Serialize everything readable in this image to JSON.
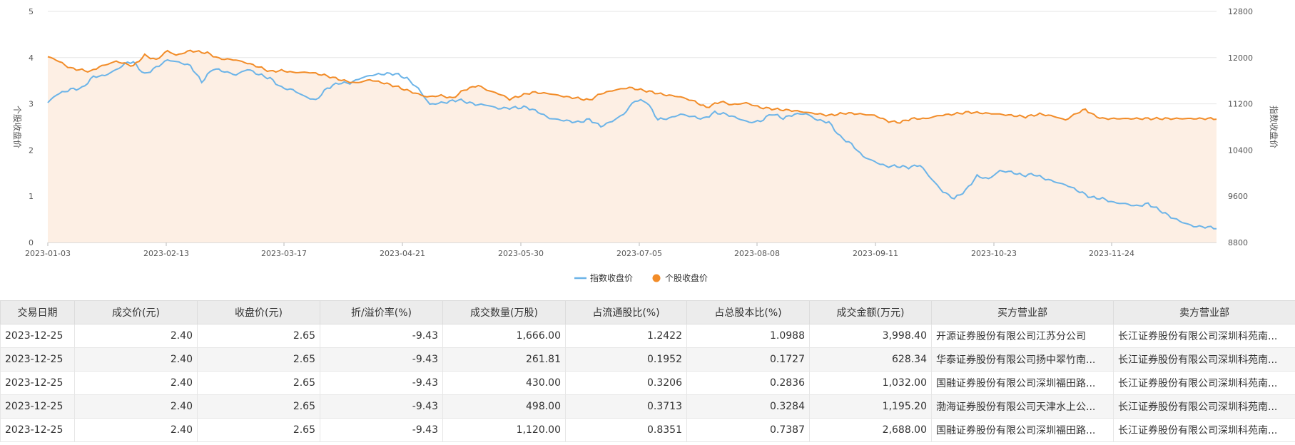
{
  "chart_data": {
    "type": "line",
    "x_ticks": [
      "2023-01-03",
      "2023-02-13",
      "2023-03-17",
      "2023-04-21",
      "2023-05-30",
      "2023-07-05",
      "2023-08-08",
      "2023-09-11",
      "2023-10-23",
      "2023-11-24"
    ],
    "left_axis": {
      "label": "个股收盘价",
      "ticks": [
        "0",
        "1",
        "2",
        "3",
        "4",
        "5"
      ],
      "range": [
        0,
        5
      ]
    },
    "right_axis": {
      "label": "指数收盘价",
      "ticks": [
        "8800",
        "9600",
        "10400",
        "11200",
        "12000",
        "12800"
      ],
      "range": [
        8800,
        12800
      ]
    },
    "legend": [
      "指数收盘价",
      "个股收盘价"
    ],
    "series": [
      {
        "name": "个股收盘价",
        "axis": "left",
        "color": "#f28c28",
        "area_fill": "#fdefe4",
        "keyframes": [
          [
            0,
            4.02
          ],
          [
            3,
            3.95
          ],
          [
            8,
            3.77
          ],
          [
            15,
            3.7
          ],
          [
            18,
            3.8
          ],
          [
            24,
            3.92
          ],
          [
            30,
            3.82
          ],
          [
            34,
            4.05
          ],
          [
            38,
            3.95
          ],
          [
            42,
            4.15
          ],
          [
            45,
            4.05
          ],
          [
            50,
            4.15
          ],
          [
            56,
            4.1
          ],
          [
            60,
            3.98
          ],
          [
            66,
            3.95
          ],
          [
            70,
            3.88
          ],
          [
            74,
            3.8
          ],
          [
            78,
            3.7
          ],
          [
            82,
            3.72
          ],
          [
            86,
            3.68
          ],
          [
            92,
            3.68
          ],
          [
            97,
            3.62
          ],
          [
            104,
            3.5
          ],
          [
            108,
            3.45
          ],
          [
            113,
            3.52
          ],
          [
            118,
            3.45
          ],
          [
            122,
            3.38
          ],
          [
            128,
            3.25
          ],
          [
            133,
            3.15
          ],
          [
            138,
            3.18
          ],
          [
            142,
            3.12
          ],
          [
            146,
            3.3
          ],
          [
            151,
            3.4
          ],
          [
            154,
            3.3
          ],
          [
            159,
            3.2
          ],
          [
            162,
            3.1
          ],
          [
            166,
            3.18
          ],
          [
            170,
            3.25
          ],
          [
            176,
            3.22
          ],
          [
            182,
            3.15
          ],
          [
            186,
            3.12
          ],
          [
            190,
            3.08
          ],
          [
            194,
            3.22
          ],
          [
            199,
            3.3
          ],
          [
            204,
            3.35
          ],
          [
            210,
            3.28
          ],
          [
            216,
            3.2
          ],
          [
            222,
            3.15
          ],
          [
            227,
            3.05
          ],
          [
            231,
            2.92
          ],
          [
            236,
            3.05
          ],
          [
            240,
            2.98
          ],
          [
            245,
            3.02
          ],
          [
            250,
            2.92
          ],
          [
            256,
            2.88
          ],
          [
            262,
            2.85
          ],
          [
            268,
            2.8
          ],
          [
            274,
            2.75
          ],
          [
            280,
            2.8
          ],
          [
            285,
            2.78
          ],
          [
            290,
            2.75
          ],
          [
            295,
            2.62
          ],
          [
            299,
            2.6
          ],
          [
            303,
            2.68
          ],
          [
            308,
            2.68
          ],
          [
            313,
            2.75
          ],
          [
            318,
            2.78
          ],
          [
            323,
            2.82
          ],
          [
            328,
            2.8
          ],
          [
            333,
            2.78
          ],
          [
            338,
            2.75
          ],
          [
            343,
            2.72
          ],
          [
            348,
            2.78
          ],
          [
            353,
            2.73
          ],
          [
            357,
            2.65
          ],
          [
            361,
            2.8
          ],
          [
            364,
            2.88
          ],
          [
            367,
            2.75
          ],
          [
            370,
            2.68
          ]
        ]
      },
      {
        "name": "指数收盘价",
        "axis": "right",
        "color": "#6cb4e8",
        "keyframes": [
          [
            0,
            11220
          ],
          [
            3,
            11360
          ],
          [
            8,
            11450
          ],
          [
            12,
            11470
          ],
          [
            16,
            11670
          ],
          [
            20,
            11690
          ],
          [
            24,
            11790
          ],
          [
            28,
            11920
          ],
          [
            30,
            11920
          ],
          [
            34,
            11710
          ],
          [
            38,
            11830
          ],
          [
            42,
            11960
          ],
          [
            46,
            11920
          ],
          [
            50,
            11860
          ],
          [
            54,
            11580
          ],
          [
            58,
            11810
          ],
          [
            62,
            11760
          ],
          [
            66,
            11700
          ],
          [
            70,
            11800
          ],
          [
            74,
            11710
          ],
          [
            78,
            11640
          ],
          [
            82,
            11480
          ],
          [
            86,
            11440
          ],
          [
            90,
            11330
          ],
          [
            94,
            11260
          ],
          [
            98,
            11470
          ],
          [
            102,
            11560
          ],
          [
            106,
            11560
          ],
          [
            110,
            11650
          ],
          [
            114,
            11700
          ],
          [
            118,
            11720
          ],
          [
            122,
            11720
          ],
          [
            126,
            11640
          ],
          [
            130,
            11460
          ],
          [
            134,
            11190
          ],
          [
            140,
            11230
          ],
          [
            144,
            11270
          ],
          [
            150,
            11190
          ],
          [
            154,
            11180
          ],
          [
            158,
            11120
          ],
          [
            163,
            11130
          ],
          [
            168,
            11140
          ],
          [
            172,
            11060
          ],
          [
            176,
            10950
          ],
          [
            180,
            10920
          ],
          [
            186,
            10880
          ],
          [
            190,
            10930
          ],
          [
            194,
            10810
          ],
          [
            198,
            10900
          ],
          [
            202,
            11020
          ],
          [
            206,
            11260
          ],
          [
            210,
            11240
          ],
          [
            214,
            10930
          ],
          [
            218,
            10950
          ],
          [
            222,
            11020
          ],
          [
            226,
            10980
          ],
          [
            230,
            10940
          ],
          [
            234,
            11050
          ],
          [
            238,
            11020
          ],
          [
            242,
            10950
          ],
          [
            246,
            10880
          ],
          [
            250,
            10900
          ],
          [
            254,
            11030
          ],
          [
            258,
            10950
          ],
          [
            262,
            11020
          ],
          [
            266,
            11030
          ],
          [
            270,
            10920
          ],
          [
            274,
            10880
          ],
          [
            278,
            10630
          ],
          [
            282,
            10500
          ],
          [
            286,
            10290
          ],
          [
            290,
            10200
          ],
          [
            294,
            10120
          ],
          [
            298,
            10120
          ],
          [
            302,
            10100
          ],
          [
            306,
            10140
          ],
          [
            310,
            9900
          ],
          [
            314,
            9680
          ],
          [
            318,
            9560
          ],
          [
            322,
            9700
          ],
          [
            326,
            9950
          ],
          [
            330,
            9900
          ],
          [
            334,
            10040
          ],
          [
            338,
            10020
          ],
          [
            342,
            9960
          ],
          [
            346,
            9980
          ],
          [
            350,
            9900
          ],
          [
            354,
            9840
          ],
          [
            358,
            9780
          ],
          [
            362,
            9680
          ],
          [
            366,
            9580
          ],
          [
            370,
            9560
          ],
          [
            374,
            9490
          ],
          [
            378,
            9470
          ],
          [
            382,
            9430
          ],
          [
            386,
            9470
          ],
          [
            390,
            9360
          ],
          [
            394,
            9240
          ],
          [
            398,
            9150
          ],
          [
            402,
            9080
          ],
          [
            406,
            9070
          ],
          [
            410,
            9050
          ]
        ]
      }
    ],
    "axis_color": "#b9b9b9",
    "grid_color": "#e6e6e6"
  },
  "table": {
    "headers": [
      "交易日期",
      "成交价(元)",
      "收盘价(元)",
      "折/溢价率(%)",
      "成交数量(万股)",
      "占流通股比(%)",
      "占总股本比(%)",
      "成交金额(万元)",
      "买方营业部",
      "卖方营业部"
    ],
    "rows": [
      [
        "2023-12-25",
        "2.40",
        "2.65",
        "-9.43",
        "1,666.00",
        "1.2422",
        "1.0988",
        "3,998.40",
        "开源证券股份有限公司江苏分公司",
        "长江证券股份有限公司深圳科苑南..."
      ],
      [
        "2023-12-25",
        "2.40",
        "2.65",
        "-9.43",
        "261.81",
        "0.1952",
        "0.1727",
        "628.34",
        "华泰证券股份有限公司扬中翠竹南...",
        "长江证券股份有限公司深圳科苑南..."
      ],
      [
        "2023-12-25",
        "2.40",
        "2.65",
        "-9.43",
        "430.00",
        "0.3206",
        "0.2836",
        "1,032.00",
        "国融证券股份有限公司深圳福田路...",
        "长江证券股份有限公司深圳科苑南..."
      ],
      [
        "2023-12-25",
        "2.40",
        "2.65",
        "-9.43",
        "498.00",
        "0.3713",
        "0.3284",
        "1,195.20",
        "渤海证券股份有限公司天津水上公...",
        "长江证券股份有限公司深圳科苑南..."
      ],
      [
        "2023-12-25",
        "2.40",
        "2.65",
        "-9.43",
        "1,120.00",
        "0.8351",
        "0.7387",
        "2,688.00",
        "国融证券股份有限公司深圳福田路...",
        "长江证券股份有限公司深圳科苑南..."
      ]
    ]
  }
}
